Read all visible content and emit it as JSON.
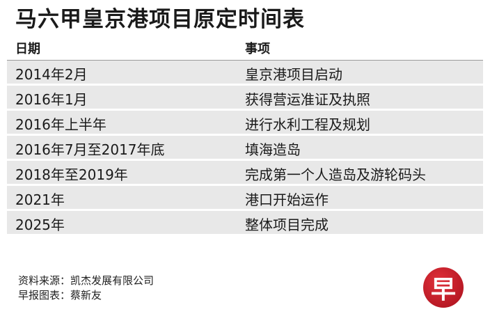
{
  "title": "马六甲皇京港项目原定时间表",
  "headers": {
    "date": "日期",
    "item": "事项"
  },
  "rows": [
    {
      "date": "2014年2月",
      "item": "皇京港项目启动"
    },
    {
      "date": "2016年1月",
      "item": "获得营运准证及执照"
    },
    {
      "date": "2016年上半年",
      "item": "进行水利工程及规划"
    },
    {
      "date": "2016年7月至2017年底",
      "item": "填海造岛"
    },
    {
      "date": "2018年至2019年",
      "item": "完成第一个人造岛及游轮码头"
    },
    {
      "date": "2021年",
      "item": "港口开始运作"
    },
    {
      "date": "2025年",
      "item": "整体项目完成"
    }
  ],
  "footer": {
    "source": "资料来源：凯杰发展有限公司",
    "chart_by": "早报图表：蔡新友"
  },
  "logo": {
    "text": "早",
    "color": "#c8192a"
  }
}
